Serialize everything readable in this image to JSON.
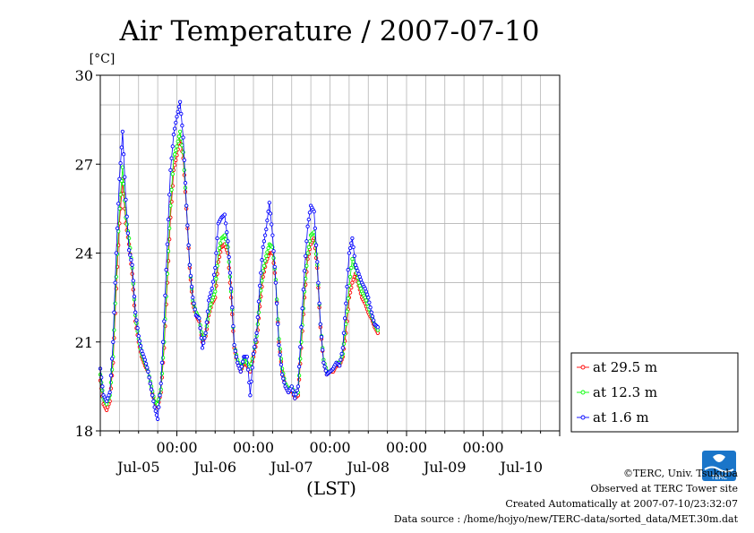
{
  "chart_data": {
    "type": "line",
    "title": "Air Temperature / 2007-07-10",
    "xlabel": "(LST)",
    "ylabel": "[°C]",
    "ylim": [
      18,
      30
    ],
    "y_ticks": [
      "18",
      "21",
      "24",
      "27",
      "30"
    ],
    "x_ticks_top": [
      "00:00",
      "00:00",
      "00:00",
      "00:00",
      "00:00"
    ],
    "x_ticks_bottom": [
      "Jul-05",
      "Jul-06",
      "Jul-07",
      "Jul-08",
      "Jul-09",
      "Jul-10"
    ],
    "xlim_hours": [
      0,
      144
    ],
    "grid": true,
    "legend_position": "right",
    "series": [
      {
        "name": "at 29.5 m",
        "color": "#ff0000",
        "values": [
          [
            0,
            19.7
          ],
          [
            1,
            18.9
          ],
          [
            2,
            18.7
          ],
          [
            3,
            19.0
          ],
          [
            4,
            20.3
          ],
          [
            5,
            22.8
          ],
          [
            6,
            25.0
          ],
          [
            7,
            26.5
          ],
          [
            8,
            25.0
          ],
          [
            9,
            24.3
          ],
          [
            10,
            23.3
          ],
          [
            11,
            21.7
          ],
          [
            12,
            21.0
          ],
          [
            13,
            20.5
          ],
          [
            14,
            20.2
          ],
          [
            15,
            20.0
          ],
          [
            16,
            19.4
          ],
          [
            17,
            19.0
          ],
          [
            18,
            18.8
          ],
          [
            19,
            19.3
          ],
          [
            20,
            20.8
          ],
          [
            21,
            23.0
          ],
          [
            22,
            25.2
          ],
          [
            23,
            26.8
          ],
          [
            24,
            27.3
          ],
          [
            25,
            27.9
          ],
          [
            26,
            27.2
          ],
          [
            27,
            25.5
          ],
          [
            28,
            23.5
          ],
          [
            29,
            22.3
          ],
          [
            30,
            21.9
          ],
          [
            31,
            21.7
          ],
          [
            32,
            21.0
          ],
          [
            33,
            21.2
          ],
          [
            34,
            21.9
          ],
          [
            35,
            22.3
          ],
          [
            36,
            22.5
          ],
          [
            37,
            23.7
          ],
          [
            38,
            24.2
          ],
          [
            39,
            24.3
          ],
          [
            40,
            24.0
          ],
          [
            41,
            22.5
          ],
          [
            42,
            20.8
          ],
          [
            43,
            20.3
          ],
          [
            44,
            20.0
          ],
          [
            45,
            20.3
          ],
          [
            46,
            20.2
          ],
          [
            47,
            20.0
          ],
          [
            48,
            20.5
          ],
          [
            49,
            21.0
          ],
          [
            50,
            22.2
          ],
          [
            51,
            23.2
          ],
          [
            52,
            23.7
          ],
          [
            53,
            24.0
          ],
          [
            54,
            24.0
          ],
          [
            55,
            23.0
          ],
          [
            56,
            21.0
          ],
          [
            57,
            20.0
          ],
          [
            58,
            19.5
          ],
          [
            59,
            19.3
          ],
          [
            60,
            19.4
          ],
          [
            61,
            19.1
          ],
          [
            62,
            19.2
          ],
          [
            63,
            20.8
          ],
          [
            64,
            22.5
          ],
          [
            65,
            23.8
          ],
          [
            66,
            24.3
          ],
          [
            67,
            24.5
          ],
          [
            68,
            23.5
          ],
          [
            69,
            21.5
          ],
          [
            70,
            20.3
          ],
          [
            71,
            19.9
          ],
          [
            72,
            20.0
          ],
          [
            73,
            20.0
          ],
          [
            74,
            20.2
          ],
          [
            75,
            20.2
          ],
          [
            76,
            20.5
          ],
          [
            77,
            21.3
          ],
          [
            78,
            22.5
          ],
          [
            79,
            23.0
          ],
          [
            80,
            23.3
          ],
          [
            81,
            22.9
          ],
          [
            82,
            22.5
          ],
          [
            83,
            22.3
          ],
          [
            84,
            22.0
          ],
          [
            85,
            21.8
          ],
          [
            86,
            21.5
          ],
          [
            87,
            21.3
          ]
        ]
      },
      {
        "name": "at 12.3 m",
        "color": "#00ff00",
        "values": [
          [
            0,
            19.9
          ],
          [
            1,
            19.1
          ],
          [
            2,
            18.9
          ],
          [
            3,
            19.2
          ],
          [
            4,
            20.5
          ],
          [
            5,
            23.2
          ],
          [
            6,
            25.5
          ],
          [
            7,
            26.9
          ],
          [
            8,
            25.2
          ],
          [
            9,
            24.5
          ],
          [
            10,
            23.5
          ],
          [
            11,
            21.9
          ],
          [
            12,
            21.1
          ],
          [
            13,
            20.6
          ],
          [
            14,
            20.3
          ],
          [
            15,
            20.0
          ],
          [
            16,
            19.5
          ],
          [
            17,
            19.0
          ],
          [
            18,
            18.9
          ],
          [
            19,
            19.4
          ],
          [
            20,
            21.0
          ],
          [
            21,
            23.3
          ],
          [
            22,
            25.6
          ],
          [
            23,
            27.2
          ],
          [
            24,
            27.6
          ],
          [
            25,
            28.1
          ],
          [
            26,
            27.4
          ],
          [
            27,
            25.6
          ],
          [
            28,
            23.6
          ],
          [
            29,
            22.4
          ],
          [
            30,
            22.0
          ],
          [
            31,
            21.8
          ],
          [
            32,
            21.1
          ],
          [
            33,
            21.3
          ],
          [
            34,
            22.0
          ],
          [
            35,
            22.4
          ],
          [
            36,
            22.7
          ],
          [
            37,
            24.0
          ],
          [
            38,
            24.5
          ],
          [
            39,
            24.6
          ],
          [
            40,
            24.2
          ],
          [
            41,
            22.7
          ],
          [
            42,
            20.9
          ],
          [
            43,
            20.4
          ],
          [
            44,
            20.1
          ],
          [
            45,
            20.4
          ],
          [
            46,
            20.3
          ],
          [
            47,
            20.1
          ],
          [
            48,
            20.6
          ],
          [
            49,
            21.2
          ],
          [
            50,
            22.4
          ],
          [
            51,
            23.4
          ],
          [
            52,
            23.9
          ],
          [
            53,
            24.3
          ],
          [
            54,
            24.2
          ],
          [
            55,
            23.1
          ],
          [
            56,
            21.1
          ],
          [
            57,
            20.1
          ],
          [
            58,
            19.6
          ],
          [
            59,
            19.4
          ],
          [
            60,
            19.5
          ],
          [
            61,
            19.2
          ],
          [
            62,
            19.3
          ],
          [
            63,
            21.0
          ],
          [
            64,
            22.7
          ],
          [
            65,
            24.0
          ],
          [
            66,
            24.6
          ],
          [
            67,
            24.7
          ],
          [
            68,
            23.6
          ],
          [
            69,
            21.6
          ],
          [
            70,
            20.4
          ],
          [
            71,
            20.0
          ],
          [
            72,
            20.0
          ],
          [
            73,
            20.1
          ],
          [
            74,
            20.3
          ],
          [
            75,
            20.3
          ],
          [
            76,
            20.6
          ],
          [
            77,
            21.6
          ],
          [
            78,
            22.9
          ],
          [
            79,
            23.8
          ],
          [
            80,
            23.5
          ],
          [
            81,
            23.0
          ],
          [
            82,
            22.7
          ],
          [
            83,
            22.5
          ],
          [
            84,
            22.2
          ],
          [
            85,
            21.9
          ],
          [
            86,
            21.6
          ],
          [
            87,
            21.4
          ]
        ]
      },
      {
        "name": "at 1.6 m",
        "color": "#0000ff",
        "values": [
          [
            0,
            20.1
          ],
          [
            1,
            19.2
          ],
          [
            2,
            19.0
          ],
          [
            3,
            19.3
          ],
          [
            4,
            21.0
          ],
          [
            5,
            24.0
          ],
          [
            6,
            26.5
          ],
          [
            7,
            28.1
          ],
          [
            8,
            25.8
          ],
          [
            9,
            24.1
          ],
          [
            10,
            23.6
          ],
          [
            11,
            22.0
          ],
          [
            12,
            21.2
          ],
          [
            13,
            20.7
          ],
          [
            14,
            20.4
          ],
          [
            15,
            20.0
          ],
          [
            16,
            19.4
          ],
          [
            17,
            18.8
          ],
          [
            18,
            18.4
          ],
          [
            19,
            19.6
          ],
          [
            20,
            21.7
          ],
          [
            21,
            24.3
          ],
          [
            22,
            26.8
          ],
          [
            23,
            28.0
          ],
          [
            24,
            28.6
          ],
          [
            25,
            29.1
          ],
          [
            26,
            27.9
          ],
          [
            27,
            25.6
          ],
          [
            28,
            23.6
          ],
          [
            29,
            22.5
          ],
          [
            30,
            21.9
          ],
          [
            31,
            21.8
          ],
          [
            32,
            20.8
          ],
          [
            33,
            21.3
          ],
          [
            34,
            22.4
          ],
          [
            35,
            22.8
          ],
          [
            36,
            23.5
          ],
          [
            37,
            25.0
          ],
          [
            38,
            25.2
          ],
          [
            39,
            25.3
          ],
          [
            40,
            24.4
          ],
          [
            41,
            22.8
          ],
          [
            42,
            20.9
          ],
          [
            43,
            20.3
          ],
          [
            44,
            20.0
          ],
          [
            45,
            20.5
          ],
          [
            46,
            20.5
          ],
          [
            47,
            19.2
          ],
          [
            48,
            20.6
          ],
          [
            49,
            21.3
          ],
          [
            50,
            22.9
          ],
          [
            51,
            24.2
          ],
          [
            52,
            24.8
          ],
          [
            53,
            25.7
          ],
          [
            54,
            24.6
          ],
          [
            55,
            23.0
          ],
          [
            56,
            20.9
          ],
          [
            57,
            19.9
          ],
          [
            58,
            19.5
          ],
          [
            59,
            19.3
          ],
          [
            60,
            19.5
          ],
          [
            61,
            19.1
          ],
          [
            62,
            19.5
          ],
          [
            63,
            21.5
          ],
          [
            64,
            23.4
          ],
          [
            65,
            24.9
          ],
          [
            66,
            25.6
          ],
          [
            67,
            25.4
          ],
          [
            68,
            23.7
          ],
          [
            69,
            21.6
          ],
          [
            70,
            20.3
          ],
          [
            71,
            19.9
          ],
          [
            72,
            20.0
          ],
          [
            73,
            20.1
          ],
          [
            74,
            20.3
          ],
          [
            75,
            20.2
          ],
          [
            76,
            20.8
          ],
          [
            77,
            22.3
          ],
          [
            78,
            24.0
          ],
          [
            79,
            24.5
          ],
          [
            80,
            23.6
          ],
          [
            81,
            23.3
          ],
          [
            82,
            23.0
          ],
          [
            83,
            22.8
          ],
          [
            84,
            22.5
          ],
          [
            85,
            22.0
          ],
          [
            86,
            21.6
          ],
          [
            87,
            21.5
          ]
        ]
      }
    ]
  },
  "credits": {
    "line1": "©TERC, Univ. Tsukuba",
    "line2": "Observed at TERC Tower site",
    "line3": "Created Automatically at 2007-07-10/23:32:07",
    "line4": "Data source : /home/hojyo/new/TERC-data/sorted_data/MET.30m.dat"
  },
  "logo": {
    "text": "TERC",
    "color": "#1a75c9"
  }
}
